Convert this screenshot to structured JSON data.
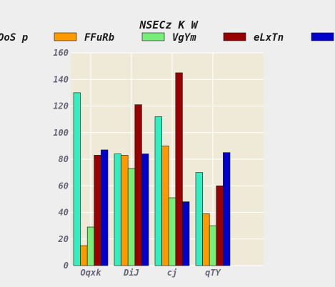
{
  "chart_data": {
    "type": "bar",
    "title": "NSECz K W",
    "xlabel": "",
    "ylabel": "",
    "categories": [
      "Oqxk",
      "DiJ",
      "cj",
      "qTY"
    ],
    "ylim": [
      0,
      160
    ],
    "yticks": [
      0,
      20,
      40,
      60,
      80,
      100,
      120,
      140,
      160
    ],
    "grid": true,
    "legend_position": "top",
    "plot_background": "#efe9d7",
    "grid_color": "#ffffff",
    "series": [
      {
        "name": "OoS p",
        "color": "#33eec0",
        "values": [
          130,
          84,
          112,
          70
        ]
      },
      {
        "name": "FFuRb",
        "color": "#ff9900",
        "values": [
          15,
          83,
          90,
          39
        ]
      },
      {
        "name": "VgYm",
        "color": "#77ee77",
        "values": [
          29,
          73,
          51,
          30
        ]
      },
      {
        "name": "eLxTn",
        "color": "#990000",
        "values": [
          83,
          121,
          145,
          60
        ]
      },
      {
        "name": "",
        "color": "#0000cc",
        "values": [
          87,
          84,
          48,
          85
        ]
      }
    ]
  }
}
